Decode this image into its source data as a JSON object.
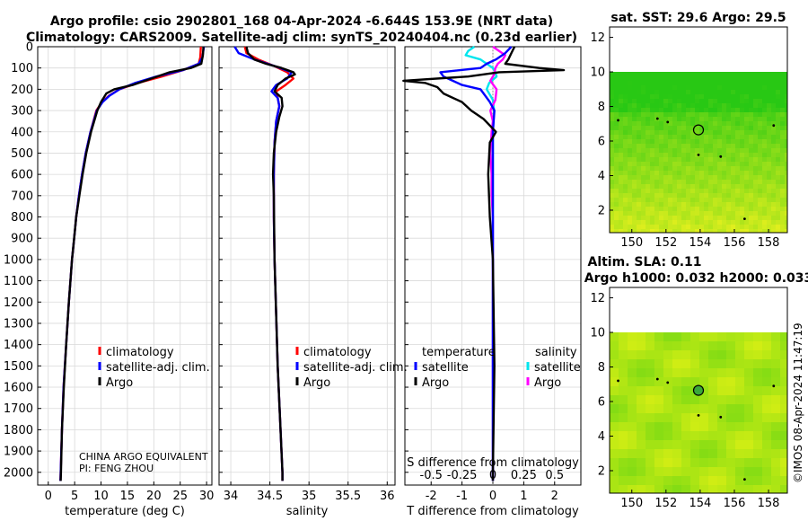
{
  "title_line1": "Argo profile: csio 2902801_168 04-Apr-2024 -6.644S 153.9E (NRT data)",
  "title_line2": "Climatology: CARS2009. Satellite-adj clim: synTS_20240404.nc (0.23d earlier)",
  "credit_line1": "CHINA ARGO EQUIVALENT",
  "credit_line2": "PI: FENG ZHOU",
  "watermark": "©IMOS 08-Apr-2024 11:47:19",
  "colors": {
    "climatology": "#ff0000",
    "satellite": "#0000ff",
    "argo": "#000000",
    "sal_satellite": "#00e5ee",
    "sal_argo": "#ff00ff"
  },
  "chart_data": [
    {
      "type": "line",
      "name": "temperature",
      "xlabel": "temperature (deg C)",
      "xlim": [
        -2,
        31
      ],
      "xticks": [
        "0",
        "5",
        "10",
        "15",
        "20",
        "25",
        "30"
      ],
      "xtick_values": [
        0,
        5,
        10,
        15,
        20,
        25,
        30
      ],
      "ylim": [
        0,
        2060
      ],
      "yticks": [
        "0",
        "100",
        "200",
        "300",
        "400",
        "500",
        "600",
        "700",
        "800",
        "900",
        "1000",
        "1100",
        "1200",
        "1300",
        "1400",
        "1500",
        "1600",
        "1700",
        "1800",
        "1900",
        "2000"
      ],
      "ytick_values": [
        0,
        100,
        200,
        300,
        400,
        500,
        600,
        700,
        800,
        900,
        1000,
        1100,
        1200,
        1300,
        1400,
        1500,
        1600,
        1700,
        1800,
        1900,
        2000
      ],
      "legend": [
        "climatology",
        "satellite-adj. clim.",
        "Argo"
      ],
      "series": [
        {
          "name": "climatology",
          "depth": [
            0,
            50,
            80,
            110,
            140,
            170,
            200,
            230,
            260,
            300,
            400,
            500,
            600,
            700,
            800,
            900,
            1000,
            1200,
            1400,
            1600,
            1800,
            2000,
            2040
          ],
          "values": [
            28.9,
            28.8,
            28.5,
            25.5,
            21.5,
            17,
            13.5,
            11.5,
            10.2,
            9.1,
            8,
            7.1,
            6.4,
            5.8,
            5.3,
            4.9,
            4.5,
            3.9,
            3.4,
            2.9,
            2.6,
            2.35,
            2.3
          ]
        },
        {
          "name": "satellite-adj. clim.",
          "depth": [
            0,
            50,
            80,
            110,
            140,
            170,
            200,
            230,
            260,
            300,
            400,
            500,
            600,
            700,
            800,
            900,
            1000,
            1200,
            1400,
            1600,
            1800,
            2000,
            2040
          ],
          "values": [
            29.5,
            29.2,
            28.5,
            25.5,
            20.5,
            16.5,
            13.5,
            11.6,
            10.3,
            9.2,
            8,
            7.1,
            6.4,
            5.8,
            5.3,
            4.9,
            4.5,
            3.9,
            3.4,
            2.9,
            2.6,
            2.35,
            2.3
          ]
        },
        {
          "name": "Argo",
          "depth": [
            0,
            40,
            80,
            100,
            120,
            150,
            180,
            200,
            220,
            260,
            300,
            400,
            500,
            600,
            700,
            800,
            900,
            1000,
            1200,
            1400,
            1600,
            1800,
            2000,
            2040
          ],
          "values": [
            29.4,
            29.3,
            29,
            27,
            23,
            19.5,
            16,
            12.5,
            11,
            10,
            9.3,
            8.1,
            7.2,
            6.5,
            5.9,
            5.3,
            4.9,
            4.5,
            3.9,
            3.4,
            2.95,
            2.6,
            2.4,
            2.35
          ]
        }
      ]
    },
    {
      "type": "line",
      "name": "salinity",
      "xlabel": "salinity",
      "xlim": [
        33.85,
        36.1
      ],
      "xticks": [
        "34",
        "34.5",
        "35",
        "35.5",
        "36"
      ],
      "xtick_values": [
        34,
        34.5,
        35,
        35.5,
        36
      ],
      "ylim": [
        0,
        2060
      ],
      "legend": [
        "climatology",
        "satellite-adj. clim.",
        "Argo"
      ],
      "series": [
        {
          "name": "climatology",
          "depth": [
            0,
            30,
            60,
            90,
            120,
            150,
            180,
            210,
            240,
            280,
            350,
            450,
            600,
            800,
            1000,
            1500,
            2000,
            2040
          ],
          "values": [
            34.18,
            34.2,
            34.35,
            34.55,
            34.72,
            34.8,
            34.7,
            34.58,
            34.6,
            34.62,
            34.58,
            34.56,
            34.55,
            34.55,
            34.56,
            34.6,
            34.66,
            34.66
          ]
        },
        {
          "name": "satellite-adj. clim.",
          "depth": [
            0,
            30,
            60,
            90,
            120,
            150,
            180,
            210,
            240,
            280,
            350,
            450,
            600,
            800,
            1000,
            1500,
            2000,
            2040
          ],
          "values": [
            34.05,
            34.1,
            34.3,
            34.55,
            34.78,
            34.72,
            34.58,
            34.52,
            34.6,
            34.62,
            34.58,
            34.56,
            34.55,
            34.55,
            34.56,
            34.6,
            34.66,
            34.66
          ]
        },
        {
          "name": "Argo",
          "depth": [
            0,
            30,
            60,
            80,
            100,
            120,
            130,
            150,
            180,
            210,
            240,
            280,
            330,
            400,
            500,
            600,
            700,
            1000,
            1500,
            2000,
            2040
          ],
          "values": [
            34.2,
            34.22,
            34.3,
            34.45,
            34.65,
            34.8,
            34.82,
            34.7,
            34.6,
            34.56,
            34.65,
            34.66,
            34.62,
            34.58,
            34.55,
            34.54,
            34.55,
            34.56,
            34.6,
            34.66,
            34.66
          ]
        }
      ]
    },
    {
      "type": "line",
      "name": "difference",
      "xlabel": "T difference from climatology",
      "xlabel_top": "S difference from climatology",
      "xlim": [
        -2.85,
        2.85
      ],
      "xticks": [
        "-2",
        "-1",
        "0",
        "1",
        "2"
      ],
      "xtick_values": [
        -2,
        -1,
        0,
        1,
        2
      ],
      "sticks": [
        "-0.5",
        "-0.25",
        "0",
        "0.25",
        "0.5"
      ],
      "stick_values": [
        -0.5,
        -0.25,
        0,
        0.25,
        0.5
      ],
      "ylim": [
        0,
        2060
      ],
      "legend_temperature_title": "temperature",
      "legend_salinity_title": "salinity",
      "legend_temperature": [
        "satellite",
        "Argo"
      ],
      "legend_salinity": [
        "satellite",
        "Argo"
      ],
      "series": [
        {
          "name": "temperature satellite",
          "depth": [
            0,
            30,
            60,
            80,
            100,
            120,
            140,
            160,
            180,
            200,
            220,
            260,
            300,
            400,
            600,
            1000,
            1500,
            2000,
            2040
          ],
          "values": [
            0.6,
            0.4,
            0.1,
            -0.2,
            -0.4,
            -1.7,
            -1.6,
            -1.3,
            -1.0,
            -0.4,
            -0.3,
            -0.1,
            0.05,
            0,
            0,
            0,
            0,
            0,
            0
          ]
        },
        {
          "name": "temperature Argo",
          "depth": [
            0,
            30,
            60,
            80,
            100,
            110,
            120,
            140,
            160,
            170,
            190,
            220,
            260,
            300,
            340,
            400,
            450,
            600,
            800,
            1000,
            1500,
            2000,
            2040
          ],
          "values": [
            0.7,
            0.6,
            0.5,
            0.4,
            1.5,
            2.3,
            0.2,
            -0.8,
            -2.9,
            -2.2,
            -1.8,
            -1.6,
            -1.0,
            -0.7,
            -0.3,
            0.1,
            -0.1,
            -0.15,
            -0.1,
            0,
            0.05,
            0,
            0
          ]
        },
        {
          "name": "salinity satellite",
          "depth": [
            0,
            20,
            40,
            60,
            80,
            100,
            120,
            140,
            170,
            200,
            250,
            300,
            400,
            600,
            1000,
            1500,
            2000,
            2040
          ],
          "values": [
            -0.15,
            -0.2,
            -0.22,
            -0.1,
            -0.05,
            0,
            0.02,
            0.03,
            -0.03,
            -0.05,
            0,
            0.01,
            0,
            0,
            0,
            0,
            0,
            0
          ]
        },
        {
          "name": "salinity Argo",
          "depth": [
            0,
            20,
            40,
            60,
            80,
            100,
            130,
            160,
            200,
            250,
            300,
            350,
            400,
            500,
            600,
            700,
            800,
            1000,
            1200,
            1500,
            1800,
            2000,
            2040
          ],
          "values": [
            0.0,
            0.05,
            0.1,
            0.08,
            0.04,
            0.02,
            0.01,
            -0.02,
            0.03,
            0.02,
            -0.02,
            0,
            -0.01,
            -0.02,
            -0.01,
            -0.01,
            0,
            0,
            0,
            0,
            0,
            0,
            0
          ]
        }
      ]
    },
    {
      "type": "heatmap",
      "name": "sst_map",
      "title": "sat. SST: 29.6 Argo: 29.5",
      "xlim": [
        148.7,
        159.1
      ],
      "ylim": [
        0.7,
        12.6
      ],
      "xticks": [
        "150",
        "152",
        "154",
        "156",
        "158"
      ],
      "xtick_values": [
        150,
        152,
        154,
        156,
        158
      ],
      "yticks": [
        "2",
        "4",
        "6",
        "8",
        "10",
        "12"
      ],
      "ytick_values": [
        2,
        4,
        6,
        8,
        10,
        12
      ],
      "data_top": 10.0,
      "float_location": [
        153.9,
        6.644
      ]
    },
    {
      "type": "heatmap",
      "name": "sla_map",
      "title_line1": "Altim. SLA: 0.11",
      "title_line2": "Argo h1000: 0.032 h2000: 0.033",
      "xlim": [
        148.7,
        159.1
      ],
      "ylim": [
        0.7,
        12.6
      ],
      "xticks": [
        "150",
        "152",
        "154",
        "156",
        "158"
      ],
      "xtick_values": [
        150,
        152,
        154,
        156,
        158
      ],
      "yticks": [
        "2",
        "4",
        "6",
        "8",
        "10",
        "12"
      ],
      "ytick_values": [
        2,
        4,
        6,
        8,
        10,
        12
      ],
      "data_top": 10.0,
      "float_location": [
        153.9,
        6.644
      ]
    }
  ]
}
